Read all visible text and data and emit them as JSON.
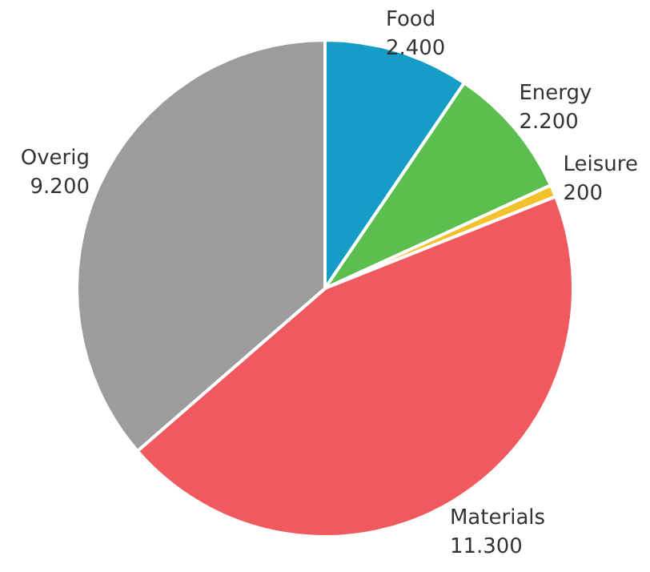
{
  "chart_data": {
    "type": "pie",
    "categories": [
      "Food",
      "Energy",
      "Leisure",
      "Materials",
      "Overig"
    ],
    "values": [
      2400,
      2200,
      200,
      11300,
      9200
    ],
    "value_labels": [
      "2.400",
      "2.200",
      "200",
      "11.300",
      "9.200"
    ],
    "colors": [
      "#159cc7",
      "#5abf4e",
      "#f2c12e",
      "#f05a5e",
      "#9a9c9d"
    ],
    "legend": false
  }
}
